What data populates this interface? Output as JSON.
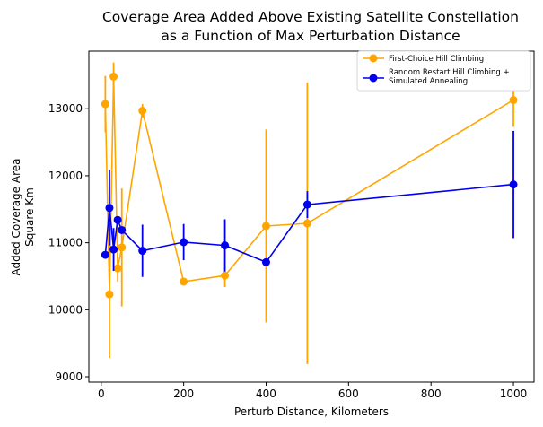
{
  "chart_data": {
    "type": "line",
    "title": [
      "Coverage Area Added Above Existing Satellite Constellation",
      "as a Function of Max Perturbation Distance"
    ],
    "xlabel": "Perturb Distance, Kilometers",
    "ylabel": [
      "Added Coverage Area",
      "Square Km"
    ],
    "xlim": [
      -30,
      1050
    ],
    "ylim": [
      8920,
      13860
    ],
    "xticks": [
      0,
      200,
      400,
      600,
      800,
      1000
    ],
    "yticks": [
      9000,
      10000,
      11000,
      12000,
      13000
    ],
    "grid": false,
    "legend_position": "top-right",
    "series": [
      {
        "name": "First-Choice Hill Climbing",
        "color": "#FFA500",
        "x": [
          10,
          20,
          30,
          40,
          50,
          100,
          200,
          300,
          400,
          500,
          1000
        ],
        "y": [
          13070,
          10230,
          13480,
          10620,
          10930,
          12970,
          10420,
          10510,
          11250,
          11290,
          13130
        ],
        "err": [
          420,
          950,
          210,
          200,
          880,
          100,
          0,
          170,
          1440,
          2100,
          400
        ]
      },
      {
        "name": "Random Restart Hill Climbing +\nSimulated Annealing",
        "color": "#0000EE",
        "x": [
          10,
          20,
          30,
          40,
          50,
          100,
          200,
          300,
          400,
          500,
          1000
        ],
        "y": [
          10820,
          11520,
          10900,
          11340,
          11190,
          10880,
          11010,
          10960,
          10710,
          11570,
          11870
        ],
        "err": [
          0,
          560,
          320,
          0,
          0,
          390,
          270,
          390,
          0,
          200,
          800
        ]
      }
    ]
  }
}
